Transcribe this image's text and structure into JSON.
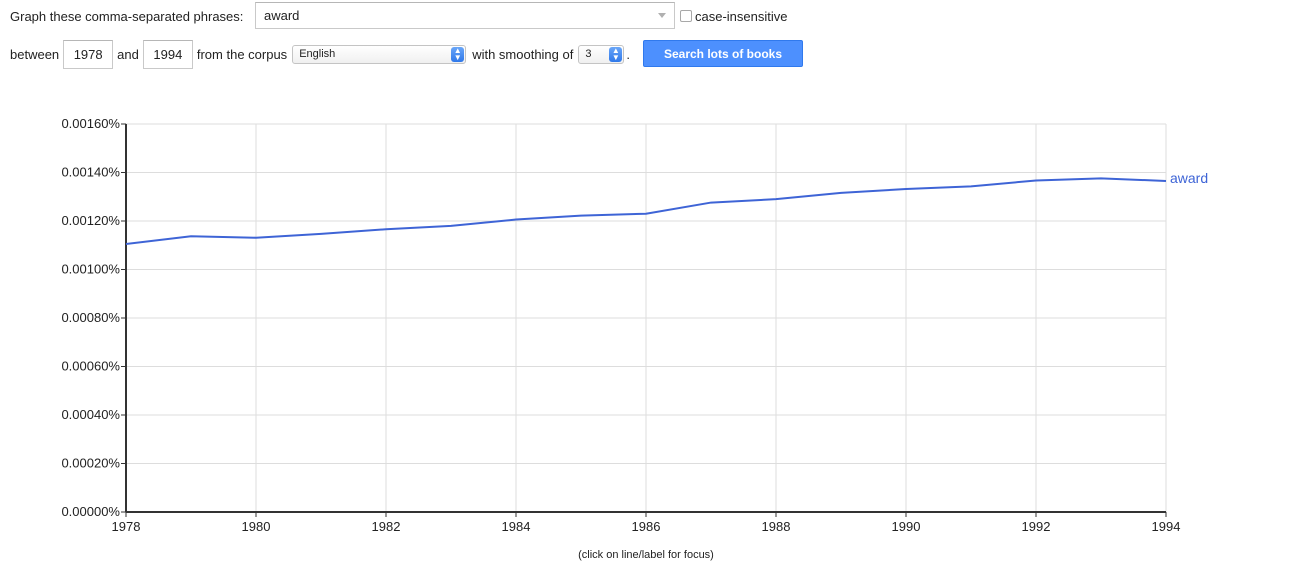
{
  "form": {
    "phrases_label": "Graph these comma-separated phrases:",
    "phrases_value": "award",
    "case_insensitive_label": "case-insensitive",
    "between_label": "between",
    "start_year": "1978",
    "and_label": "and",
    "end_year": "1994",
    "corpus_label": "from the corpus",
    "corpus_value": "English",
    "smoothing_label": "with smoothing of",
    "smoothing_value": "3",
    "period": ".",
    "search_button": "Search lots of books"
  },
  "footer_hint": "(click on line/label for focus)",
  "colors": {
    "series": "#3e64d6",
    "button": "#4d90fe",
    "grid": "#dddddd"
  },
  "chart_data": {
    "type": "line",
    "x": [
      1978,
      1979,
      1980,
      1981,
      1982,
      1983,
      1984,
      1985,
      1986,
      1987,
      1988,
      1989,
      1990,
      1991,
      1992,
      1993,
      1994
    ],
    "series": [
      {
        "name": "award",
        "values": [
          0.001105,
          0.001137,
          0.001131,
          0.001147,
          0.001166,
          0.00118,
          0.001206,
          0.001222,
          0.00123,
          0.001276,
          0.00129,
          0.001316,
          0.001332,
          0.001343,
          0.001367,
          0.001376,
          0.001365
        ]
      }
    ],
    "xlim": [
      1978,
      1994
    ],
    "ylim": [
      0,
      0.0016
    ],
    "x_ticks": [
      "1978",
      "1980",
      "1982",
      "1984",
      "1986",
      "1988",
      "1990",
      "1992",
      "1994"
    ],
    "y_ticks": [
      "0.00000%",
      "0.00020%",
      "0.00040%",
      "0.00060%",
      "0.00080%",
      "0.00100%",
      "0.00120%",
      "0.00140%",
      "0.00160%"
    ],
    "grid": true,
    "legend": "line-end label"
  }
}
